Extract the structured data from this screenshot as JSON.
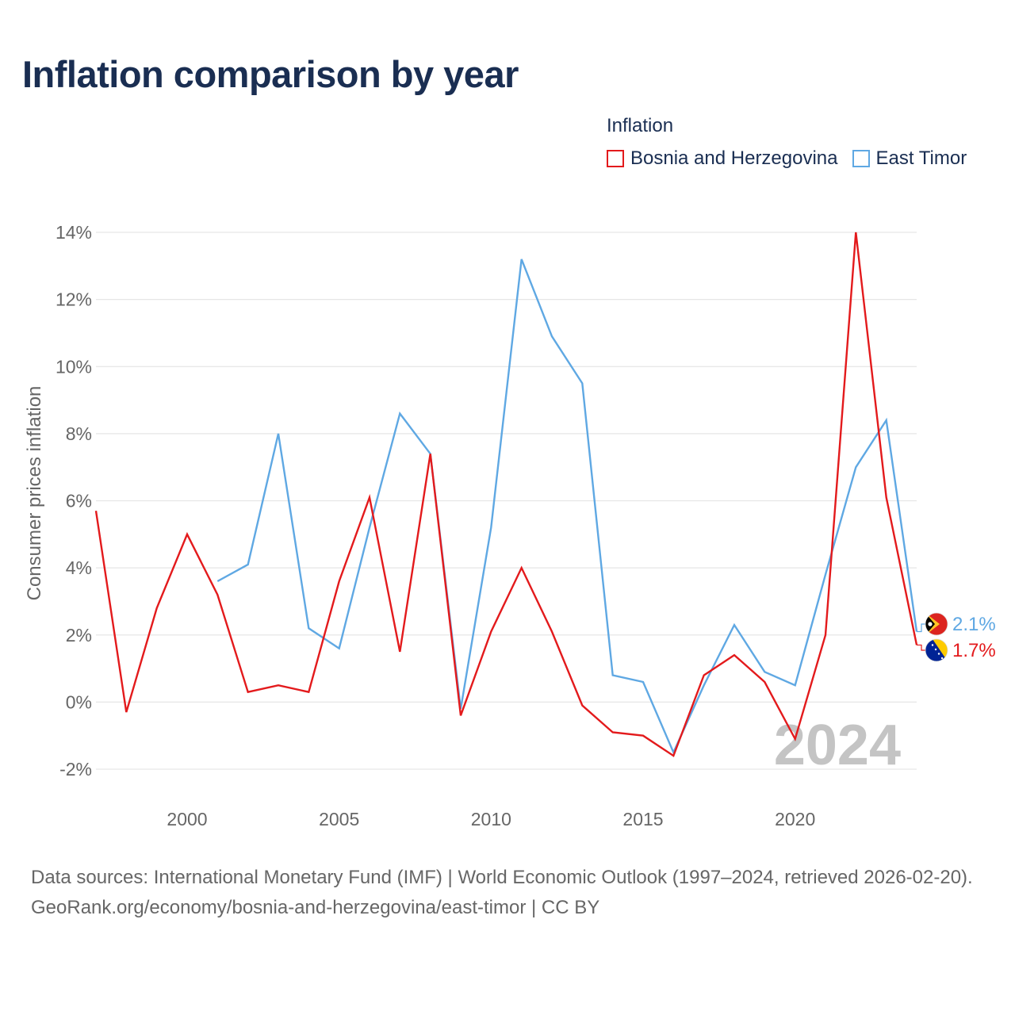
{
  "title": "Inflation comparison by year",
  "legend": {
    "title": "Inflation",
    "items": [
      {
        "label": "Bosnia and Herzegovina",
        "color": "#e31a1c"
      },
      {
        "label": "East Timor",
        "color": "#5fa8e3"
      }
    ]
  },
  "year_watermark": "2024",
  "chart_data": {
    "type": "line",
    "title": "Inflation comparison by year",
    "xlabel": "",
    "ylabel": "Consumer prices inflation",
    "xlim": [
      1997,
      2024
    ],
    "ylim": [
      -2,
      14
    ],
    "y_ticks": [
      -2,
      0,
      2,
      4,
      6,
      8,
      10,
      12,
      14
    ],
    "y_tick_labels": [
      "-2%",
      "0%",
      "2%",
      "4%",
      "6%",
      "8%",
      "10%",
      "12%",
      "14%"
    ],
    "x_ticks": [
      2000,
      2005,
      2010,
      2015,
      2020
    ],
    "x_tick_labels": [
      "2000",
      "2005",
      "2010",
      "2015",
      "2020"
    ],
    "grid": true,
    "legend_position": "top-right",
    "series": [
      {
        "name": "Bosnia and Herzegovina",
        "color": "#e31a1c",
        "end_label": "1.7%",
        "flag": "bosnia-and-herzegovina-flag-icon",
        "points": [
          [
            1997,
            5.7
          ],
          [
            1998,
            -0.3
          ],
          [
            1999,
            2.8
          ],
          [
            2000,
            5.0
          ],
          [
            2001,
            3.2
          ],
          [
            2002,
            0.3
          ],
          [
            2003,
            0.5
          ],
          [
            2004,
            0.3
          ],
          [
            2005,
            3.6
          ],
          [
            2006,
            6.1
          ],
          [
            2007,
            1.5
          ],
          [
            2008,
            7.4
          ],
          [
            2009,
            -0.4
          ],
          [
            2010,
            2.1
          ],
          [
            2011,
            4.0
          ],
          [
            2012,
            2.1
          ],
          [
            2013,
            -0.1
          ],
          [
            2014,
            -0.9
          ],
          [
            2015,
            -1.0
          ],
          [
            2016,
            -1.6
          ],
          [
            2017,
            0.8
          ],
          [
            2018,
            1.4
          ],
          [
            2019,
            0.6
          ],
          [
            2020,
            -1.1
          ],
          [
            2021,
            2.0
          ],
          [
            2022,
            14.0
          ],
          [
            2023,
            6.1
          ],
          [
            2024,
            1.7
          ]
        ]
      },
      {
        "name": "East Timor",
        "color": "#5fa8e3",
        "end_label": "2.1%",
        "flag": "east-timor-flag-icon",
        "points": [
          [
            2001,
            3.6
          ],
          [
            2002,
            4.1
          ],
          [
            2003,
            8.0
          ],
          [
            2004,
            2.2
          ],
          [
            2005,
            1.6
          ],
          [
            2006,
            5.2
          ],
          [
            2007,
            8.6
          ],
          [
            2008,
            7.4
          ],
          [
            2009,
            -0.2
          ],
          [
            2010,
            5.2
          ],
          [
            2011,
            13.2
          ],
          [
            2012,
            10.9
          ],
          [
            2013,
            9.5
          ],
          [
            2014,
            0.8
          ],
          [
            2015,
            0.6
          ],
          [
            2016,
            -1.5
          ],
          [
            2017,
            0.5
          ],
          [
            2018,
            2.3
          ],
          [
            2019,
            0.9
          ],
          [
            2020,
            0.5
          ],
          [
            2021,
            3.8
          ],
          [
            2022,
            7.0
          ],
          [
            2023,
            8.4
          ],
          [
            2024,
            2.1
          ]
        ]
      }
    ]
  },
  "footer": {
    "line1": "Data sources: International Monetary Fund (IMF) | World Economic Outlook (1997–2024, retrieved 2026-02-20).",
    "line2": "GeoRank.org/economy/bosnia-and-herzegovina/east-timor | CC BY"
  }
}
